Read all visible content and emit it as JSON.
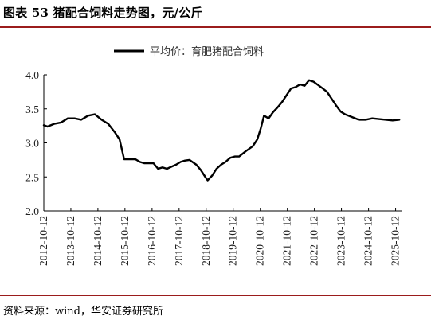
{
  "header": {
    "title": "图表 53 猪配合饲料走势图，元/公斤"
  },
  "footer": {
    "source": "资料来源：wind，华安证券研究所"
  },
  "chart_data": {
    "type": "line",
    "title": "",
    "xlabel": "",
    "ylabel": "",
    "ylim": [
      2.0,
      4.0
    ],
    "yticks": [
      "2.0",
      "2.5",
      "3.0",
      "3.5",
      "4.0"
    ],
    "xticks": [
      "2012-10-12",
      "2013-10-12",
      "2014-10-12",
      "2015-10-12",
      "2016-10-12",
      "2017-10-12",
      "2018-10-12",
      "2019-10-12",
      "2020-10-12",
      "2021-10-12",
      "2022-10-12",
      "2023-10-12",
      "2024-10-12",
      "2025-10-12"
    ],
    "xrange": [
      "2012-10-12",
      "2025-12-31"
    ],
    "legend_position": "top",
    "grid": false,
    "line_color": "#000000",
    "series": [
      {
        "name": "平均价：育肥猪配合饲料",
        "x": [
          "2012-10-12",
          "2012-12-01",
          "2013-03-01",
          "2013-06-01",
          "2013-09-01",
          "2013-12-01",
          "2014-03-01",
          "2014-06-01",
          "2014-09-01",
          "2014-12-01",
          "2015-03-01",
          "2015-06-01",
          "2015-08-01",
          "2015-10-01",
          "2015-11-01",
          "2016-01-01",
          "2016-03-01",
          "2016-05-01",
          "2016-07-01",
          "2016-09-01",
          "2016-11-01",
          "2017-01-01",
          "2017-03-01",
          "2017-05-01",
          "2017-07-01",
          "2017-09-01",
          "2017-11-01",
          "2018-01-01",
          "2018-03-01",
          "2018-06-01",
          "2018-08-01",
          "2018-10-01",
          "2018-11-01",
          "2019-01-01",
          "2019-03-01",
          "2019-05-01",
          "2019-07-01",
          "2019-09-01",
          "2019-11-01",
          "2020-01-01",
          "2020-04-01",
          "2020-07-01",
          "2020-09-01",
          "2020-10-15",
          "2020-12-01",
          "2021-02-01",
          "2021-04-01",
          "2021-06-01",
          "2021-08-01",
          "2021-10-01",
          "2021-12-01",
          "2022-02-01",
          "2022-04-01",
          "2022-06-01",
          "2022-08-01",
          "2022-10-01",
          "2022-12-01",
          "2023-02-01",
          "2023-04-01",
          "2023-06-01",
          "2023-08-01",
          "2023-10-01",
          "2023-12-01",
          "2024-03-01",
          "2024-06-01",
          "2024-09-01",
          "2024-12-01",
          "2025-03-01",
          "2025-06-01",
          "2025-09-01",
          "2025-12-01"
        ],
        "values": [
          3.26,
          3.24,
          3.28,
          3.3,
          3.36,
          3.36,
          3.34,
          3.4,
          3.42,
          3.34,
          3.28,
          3.15,
          3.05,
          2.76,
          2.76,
          2.76,
          2.76,
          2.72,
          2.7,
          2.7,
          2.7,
          2.62,
          2.64,
          2.62,
          2.65,
          2.68,
          2.72,
          2.74,
          2.75,
          2.68,
          2.6,
          2.5,
          2.45,
          2.52,
          2.62,
          2.68,
          2.72,
          2.78,
          2.8,
          2.8,
          2.88,
          2.95,
          3.05,
          3.2,
          3.4,
          3.36,
          3.45,
          3.52,
          3.6,
          3.7,
          3.8,
          3.82,
          3.86,
          3.84,
          3.92,
          3.9,
          3.85,
          3.8,
          3.75,
          3.65,
          3.55,
          3.46,
          3.42,
          3.38,
          3.34,
          3.34,
          3.36,
          3.35,
          3.34,
          3.33,
          3.34
        ]
      }
    ]
  }
}
